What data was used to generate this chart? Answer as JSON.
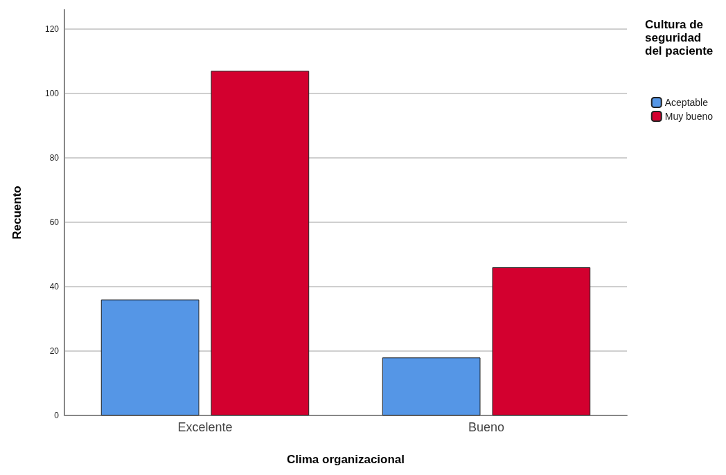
{
  "chart_data": {
    "type": "bar",
    "xlabel": "Clima organizacional",
    "ylabel": "Recuento",
    "legend_title": "Cultura de seguridad del paciente",
    "categories": [
      "Excelente",
      "Bueno"
    ],
    "series": [
      {
        "name": "Aceptable",
        "color": "#5596e6",
        "values": [
          36,
          18
        ]
      },
      {
        "name": "Muy bueno",
        "color": "#d3002f",
        "values": [
          107,
          46
        ]
      }
    ],
    "ylim": [
      0,
      126
    ],
    "yticks": [
      0,
      20,
      40,
      60,
      80,
      100,
      120
    ],
    "grid": "y",
    "legend": "top right"
  }
}
